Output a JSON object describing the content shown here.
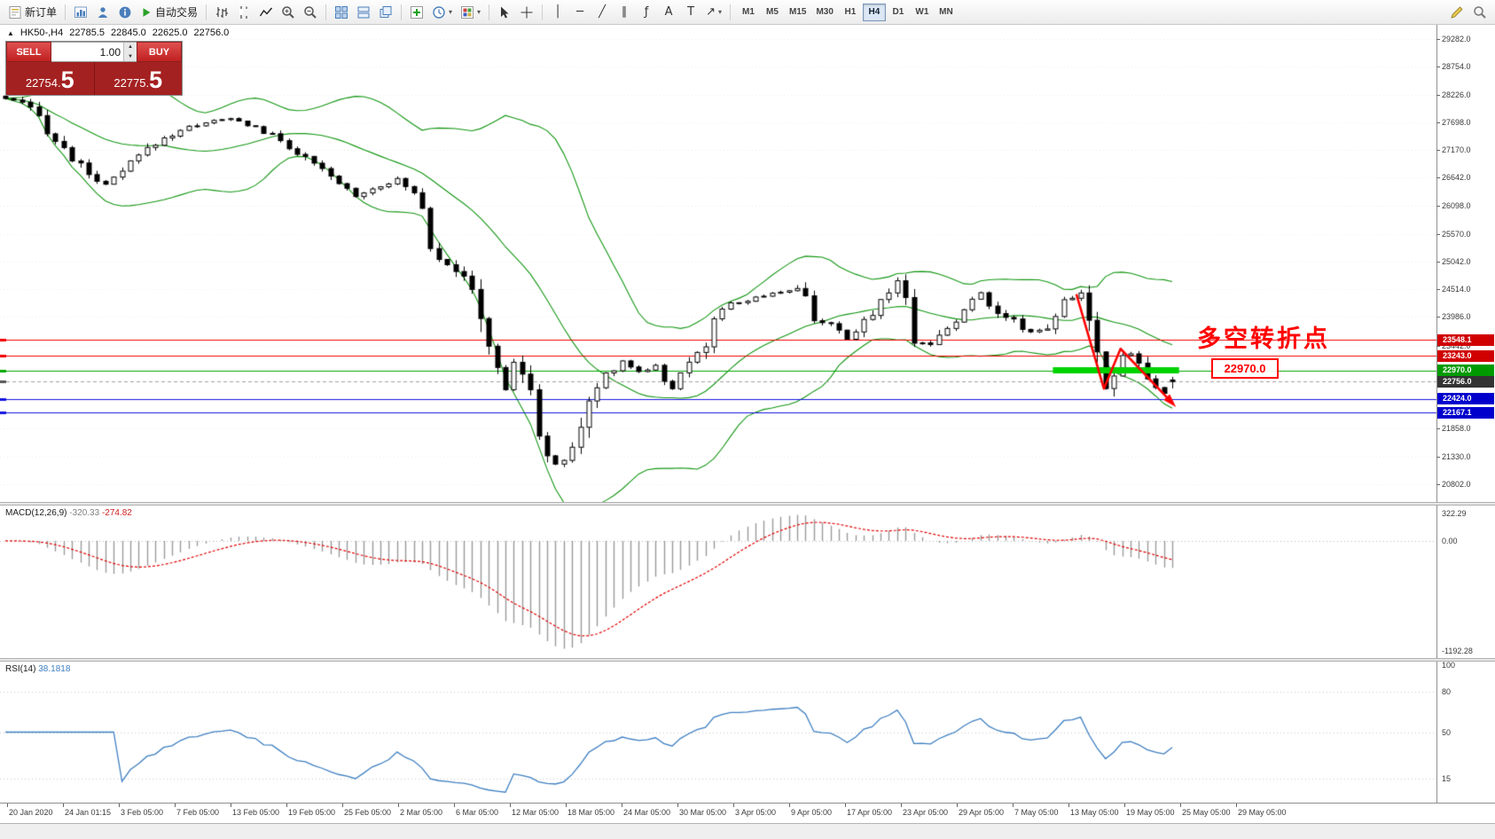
{
  "toolbar": {
    "new_order_label": "新订单",
    "autotrade_label": "自动交易",
    "timeframes": [
      "M1",
      "M5",
      "M15",
      "M30",
      "H1",
      "H4",
      "D1",
      "W1",
      "MN"
    ],
    "active_timeframe": "H4",
    "icons": [
      "new-order",
      "charts",
      "profile",
      "info",
      "autotrade",
      "bar-chart",
      "candlestick",
      "line-chart",
      "zoom-in",
      "zoom-out",
      "tile-windows",
      "arrange-windows",
      "cascade-windows",
      "add-indicator",
      "periods",
      "templates",
      "cursor",
      "crosshair",
      "vertical-line",
      "horizontal-line",
      "trendline",
      "equidistant-channel",
      "fibonacci",
      "text",
      "text-label",
      "arrow",
      "pencil",
      "search"
    ]
  },
  "symbol_bar": {
    "collapse_icon": "▲",
    "symbol": "HK50-,H4",
    "open": "22785.5",
    "high": "22845.0",
    "low": "22625.0",
    "close": "22756.0"
  },
  "trade_panel": {
    "sell_label": "SELL",
    "buy_label": "BUY",
    "volume": "1.00",
    "sell_price_main": "22754.",
    "sell_price_big": "5",
    "buy_price_main": "22775.",
    "buy_price_big": "5"
  },
  "chart_data": {
    "type": "candlestick",
    "symbol": "HK50-",
    "timeframe": "H4",
    "current_bar": {
      "open": 22785.5,
      "high": 22845.0,
      "low": 22625.0,
      "close": 22756.0
    },
    "price_max": 29554,
    "price_min": 20460,
    "y_axis_labels": [
      "29282.0",
      "28754.0",
      "28226.0",
      "27698.0",
      "27170.0",
      "26642.0",
      "26098.0",
      "25570.0",
      "25042.0",
      "24514.0",
      "23986.0",
      "23442.0",
      "21858.0",
      "21330.0",
      "20802.0"
    ],
    "x_axis_labels": [
      "20 Jan 2020",
      "24 Jan 01:15",
      "3 Feb 05:00",
      "7 Feb 05:00",
      "13 Feb 05:00",
      "19 Feb 05:00",
      "25 Feb 05:00",
      "2 Mar 05:00",
      "6 Mar 05:00",
      "12 Mar 05:00",
      "18 Mar 05:00",
      "24 Mar 05:00",
      "30 Mar 05:00",
      "3 Apr 05:00",
      "9 Apr 05:00",
      "17 Apr 05:00",
      "23 Apr 05:00",
      "29 Apr 05:00",
      "7 May 05:00",
      "13 May 05:00",
      "19 May 05:00",
      "25 May 05:00",
      "29 May 05:00"
    ],
    "candles_count": 141,
    "close_path_anchors": [
      [
        0,
        28150
      ],
      [
        2,
        28050
      ],
      [
        4,
        27800
      ],
      [
        6,
        27350
      ],
      [
        9,
        26850
      ],
      [
        12,
        26500
      ],
      [
        14,
        26750
      ],
      [
        16,
        27050
      ],
      [
        18,
        27300
      ],
      [
        21,
        27550
      ],
      [
        24,
        27700
      ],
      [
        27,
        27760
      ],
      [
        30,
        27600
      ],
      [
        33,
        27350
      ],
      [
        36,
        27000
      ],
      [
        39,
        26650
      ],
      [
        42,
        26300
      ],
      [
        45,
        26500
      ],
      [
        47,
        26600
      ],
      [
        49,
        26350
      ],
      [
        50,
        26200
      ],
      [
        51,
        25400
      ],
      [
        52,
        25150
      ],
      [
        54,
        24900
      ],
      [
        56,
        24450
      ],
      [
        57,
        24000
      ],
      [
        58,
        23500
      ],
      [
        59,
        22900
      ],
      [
        60,
        22600
      ],
      [
        61,
        23150
      ],
      [
        62,
        22900
      ],
      [
        63,
        22400
      ],
      [
        64,
        21900
      ],
      [
        65,
        21400
      ],
      [
        66,
        21150
      ],
      [
        67,
        21300
      ],
      [
        68,
        21500
      ],
      [
        69,
        21900
      ],
      [
        70,
        22300
      ],
      [
        71,
        22650
      ],
      [
        72,
        22900
      ],
      [
        74,
        23150
      ],
      [
        76,
        22950
      ],
      [
        78,
        23050
      ],
      [
        80,
        22600
      ],
      [
        82,
        23200
      ],
      [
        84,
        23500
      ],
      [
        85,
        23800
      ],
      [
        86,
        24200
      ],
      [
        89,
        24300
      ],
      [
        92,
        24450
      ],
      [
        95,
        24500
      ],
      [
        96,
        24300
      ],
      [
        97,
        24000
      ],
      [
        99,
        23800
      ],
      [
        101,
        23550
      ],
      [
        103,
        23900
      ],
      [
        105,
        24300
      ],
      [
        107,
        24700
      ],
      [
        108,
        24200
      ],
      [
        109,
        23600
      ],
      [
        111,
        23450
      ],
      [
        113,
        23800
      ],
      [
        115,
        24100
      ],
      [
        117,
        24450
      ],
      [
        119,
        24100
      ],
      [
        121,
        23900
      ],
      [
        123,
        23700
      ],
      [
        125,
        23800
      ],
      [
        127,
        24250
      ],
      [
        129,
        24400
      ],
      [
        130,
        24100
      ],
      [
        131,
        23300
      ],
      [
        132,
        22700
      ],
      [
        133,
        22950
      ],
      [
        134,
        23250
      ],
      [
        135,
        23300
      ],
      [
        136,
        23100
      ],
      [
        137,
        22800
      ],
      [
        138,
        22600
      ],
      [
        139,
        22550
      ],
      [
        140,
        22756
      ]
    ],
    "bollinger": {
      "period": 20,
      "deviation": 2,
      "color": "#129612"
    },
    "candle_colors": {
      "bull_fill": "#ffffff",
      "bear_fill": "#000000",
      "outline": "#000000"
    },
    "levels": [
      {
        "price": 23548.1,
        "label": "23548.1",
        "color": "#f00000",
        "box": "#d00000",
        "style": "solid"
      },
      {
        "price": 23243.0,
        "label": "23243.0",
        "color": "#f00000",
        "box": "#d00000",
        "style": "solid"
      },
      {
        "price": 22970.0,
        "label": "22970.0",
        "color": "#00a800",
        "box": "#009a00",
        "style": "solid"
      },
      {
        "price": 22756.0,
        "label": "22756.0",
        "color": "#a0a0a0",
        "box": "#333333",
        "style": "dashed"
      },
      {
        "price": 22424.0,
        "label": "22424.0",
        "color": "#1414e0",
        "box": "#0000cd",
        "style": "solid"
      },
      {
        "price": 22167.1,
        "label": "22167.1",
        "color": "#1414e0",
        "box": "#0000cd",
        "style": "solid"
      }
    ],
    "drawings": {
      "green_segment": {
        "from_index": 126,
        "to_index": 140.5,
        "price": 22970,
        "color": "#00d300",
        "thickness": 7
      },
      "red_zigzag": {
        "color": "#ff0000",
        "points": [
          [
            128.5,
            24420
          ],
          [
            131.8,
            22620
          ],
          [
            133.8,
            23380
          ],
          [
            139.8,
            22380
          ]
        ]
      },
      "annotation_text": "多空转折点",
      "annotation_text_color": "#ff0000",
      "annotation_box_label": "22970.0"
    },
    "indicators": {
      "macd": {
        "title": "MACD(12,26,9)",
        "value_main": "-320.33",
        "value_signal": "-274.82",
        "scale_labels": [
          "322.29",
          "0.00",
          "-1192.28"
        ],
        "histogram_color": "#9a9a9a",
        "signal_color": "#e00000"
      },
      "rsi": {
        "title": "RSI(14)",
        "value": "38.1818",
        "scale_labels": [
          "100",
          "80",
          "50",
          "15"
        ],
        "levels": [
          80,
          50,
          15
        ],
        "line_color": "#3e7fc1"
      }
    }
  }
}
